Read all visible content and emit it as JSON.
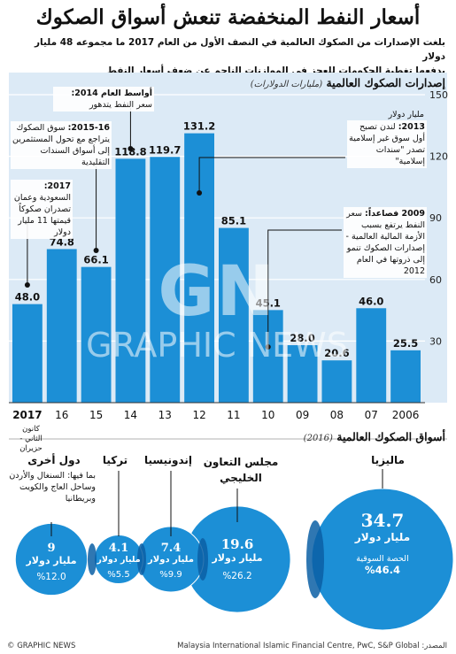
{
  "title": "أسعار النفط المنخفضة تنعش أسواق الصكوك",
  "intro_line1": "بلغت الإصدارات من الصكوك العالمية في النصف الأول من العام 2017 ما مجموعه 48 مليار دولار",
  "intro_line2": "يدفعها تغطية الحكومات للعجز في الموازنات الناجم عن ضعف أسعار النفط",
  "bar_section": {
    "title": "إصدارات الصكوك العالمية",
    "subtitle": "(مليارات الدولارات)",
    "unit_label": "مليار دولار"
  },
  "x_sublabel": "كانون الثاني - حزيران",
  "annotations": {
    "a2014": {
      "head": "أواسط العام 2014:",
      "body": "سعر النفط يتدهور"
    },
    "a2015": {
      "head": "2015-16:",
      "body": "سوق الصكوك يتراجع مع تحول المستثمرين إلى أسواق السندات التقليدية"
    },
    "a2017": {
      "head": "2017:",
      "body": "السعودية وعمان تصدران صكوكاً قيمتها 11 مليار دولار"
    },
    "a2013": {
      "head": "2013:",
      "body": "لندن تصبح أول سوق غير إسلامية تصدر \"سندات إسلامية\""
    },
    "a2009": {
      "head": "2009 فصاعداً:",
      "body": "سعر النفط يرتفع بسبب الأزمة المالية العالمية - إصدارات الصكوك تنمو إلى ذروتها في العام 2012"
    }
  },
  "chart_data": [
    {
      "type": "bar",
      "title": "إصدارات الصكوك العالمية",
      "ylabel": "مليارات الدولارات",
      "categories": [
        "2017",
        "16",
        "15",
        "14",
        "13",
        "12",
        "11",
        "10",
        "09",
        "08",
        "07",
        "2006"
      ],
      "values": [
        48.0,
        74.8,
        66.1,
        118.8,
        119.7,
        131.2,
        85.1,
        45.1,
        28.0,
        20.6,
        46.0,
        25.5
      ],
      "value_labels": [
        "48.0",
        "74.8",
        "66.1",
        "118.8",
        "119.7",
        "131.2",
        "85.1",
        "45.1",
        "28.0",
        "20.6",
        "46.0",
        "25.5"
      ],
      "yticks": [
        "30",
        "60",
        "90",
        "120",
        "150"
      ],
      "ylim": [
        0,
        150
      ],
      "grid": true,
      "colors": {
        "bar": "#1c8fd6",
        "background": "#dceaf6"
      }
    },
    {
      "type": "pie",
      "title": "أسواق الصكوك العالمية",
      "subtitle": "(2016)",
      "markets": [
        {
          "name": "ماليزيا",
          "value": 34.7,
          "value_label": "34.7",
          "unit": "مليار دولار",
          "share_title": "الحصة السوقية",
          "share": "%46.4",
          "share_value": 46.4
        },
        {
          "name": "مجلس التعاون الخليجي",
          "value": 19.6,
          "value_label": "19.6",
          "unit": "مليار دولار",
          "share": "%26.2",
          "share_value": 26.2
        },
        {
          "name": "إندونيسيا",
          "value": 7.4,
          "value_label": "7.4",
          "unit": "مليار دولار",
          "share": "%9.9",
          "share_value": 9.9
        },
        {
          "name": "تركيا",
          "value": 4.1,
          "value_label": "4.1",
          "unit": "مليار دولار",
          "share": "%5.5",
          "share_value": 5.5
        },
        {
          "name": "دول أخرى",
          "value": 9,
          "value_label": "9",
          "unit": "مليار دولار",
          "share": "%12.0",
          "share_value": 12.0,
          "note": "بما فيها: السنغال والأردن وساحل العاج والكويت وبريطانيا"
        }
      ],
      "colors": {
        "circle": "#1c8fd6",
        "overlap": "#0b5fa5"
      }
    }
  ],
  "footer": {
    "copyright": "© GRAPHIC NEWS",
    "source": "المصدر: Malaysia International Islamic Financial Centre, PwC, S&P Global"
  },
  "watermark": {
    "logo": "GN",
    "name": "GRAPHIC NEWS"
  }
}
